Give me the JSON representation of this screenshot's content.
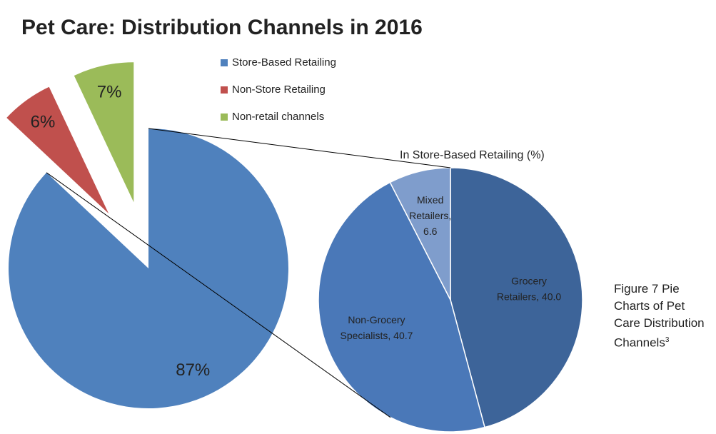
{
  "chart_data": [
    {
      "type": "pie",
      "title": "Pet Care: Distribution Channels in 2016",
      "categories": [
        "Store-Based Retailing",
        "Non-Store Retailing",
        "Non-retail channels"
      ],
      "values": [
        87,
        6,
        7
      ],
      "value_labels": [
        "87%",
        "6%",
        "7%"
      ],
      "colors": [
        "#4f81bd",
        "#c0504d",
        "#9bbb59"
      ],
      "exploded": [
        false,
        true,
        true
      ],
      "legend": "top"
    },
    {
      "type": "pie",
      "title": "In Store-Based Retailing (%)",
      "values": [
        40.0,
        40.7,
        6.6
      ],
      "value_labels": [
        "Grocery Retailers, 40.0",
        "Non-Grocery Specialists, 40.7",
        "Mixed Retailers, 6.6"
      ],
      "colors": [
        "#3d6499",
        "#4a78b8",
        "#7f9dcc"
      ]
    }
  ],
  "caption": {
    "text": "Figure 7 Pie Charts of Pet Care Distribution Channels",
    "superscript": "3"
  }
}
